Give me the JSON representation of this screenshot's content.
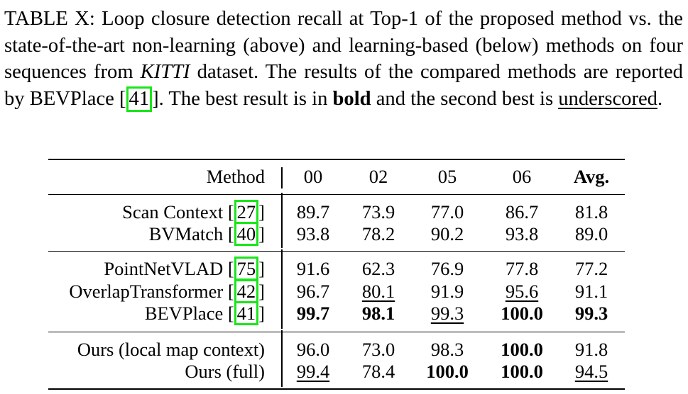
{
  "caption": {
    "label": "TABLE X:",
    "text_1": " Loop closure detection recall at Top-1 of the proposed method vs. the state-of-the-art non-learning (above) and learning-based (below) methods on four sequences from ",
    "dataset": "KITTI",
    "text_2": " dataset. The results of the compared methods are reported by BEVPlace [",
    "cite": "41",
    "text_3": "]. The best result is in ",
    "bold_word": "bold",
    "text_4": " and the second best is ",
    "underscored_word": "underscored",
    "text_5": "."
  },
  "table": {
    "headers": [
      "Method",
      "00",
      "02",
      "05",
      "06",
      "Avg."
    ],
    "rows": [
      {
        "method": "Scan Context [",
        "cite": "27",
        "close": "]",
        "values": [
          "89.7",
          "73.9",
          "77.0",
          "86.7",
          "81.8"
        ]
      },
      {
        "method": "BVMatch [",
        "cite": "40",
        "close": "]",
        "values": [
          "93.8",
          "78.2",
          "90.2",
          "93.8",
          "89.0"
        ]
      },
      {
        "method": "PointNetVLAD [",
        "cite": "75",
        "close": "]",
        "values": [
          "91.6",
          "62.3",
          "76.9",
          "77.8",
          "77.2"
        ]
      },
      {
        "method": "OverlapTransformer [",
        "cite": "42",
        "close": "]",
        "values": [
          "96.7",
          "80.1",
          "91.9",
          "95.6",
          "91.1"
        ]
      },
      {
        "method": "BEVPlace [",
        "cite": "41",
        "close": "]",
        "values": [
          "99.7",
          "98.1",
          "99.3",
          "100.0",
          "99.3"
        ]
      },
      {
        "method": "Ours (local map context)",
        "cite": "",
        "close": "",
        "values": [
          "96.0",
          "73.0",
          "98.3",
          "100.0",
          "91.8"
        ]
      },
      {
        "method": "Ours (full)",
        "cite": "",
        "close": "",
        "values": [
          "99.4",
          "78.4",
          "100.0",
          "100.0",
          "94.5"
        ]
      }
    ],
    "bold_cells": [
      [
        4,
        0
      ],
      [
        4,
        1
      ],
      [
        4,
        3
      ],
      [
        4,
        4
      ],
      [
        5,
        3
      ],
      [
        6,
        2
      ],
      [
        6,
        3
      ]
    ],
    "underlined_cells": [
      [
        3,
        1
      ],
      [
        3,
        3
      ],
      [
        4,
        2
      ],
      [
        6,
        0
      ],
      [
        6,
        4
      ]
    ],
    "cite_box_color": "#19e619"
  }
}
